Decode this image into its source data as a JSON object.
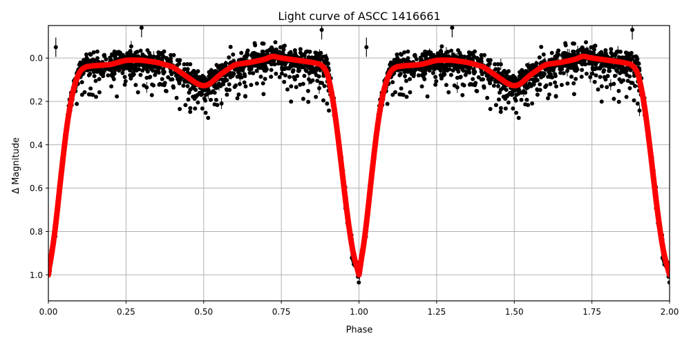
{
  "figure": {
    "title": "Light curve of ASCC 1416661",
    "xlabel": "Phase",
    "ylabel": "Δ Magnitude",
    "background": "#ffffff",
    "model_color": "#ff0000",
    "data_color": "#000000",
    "grid_color": "#b0b0b0"
  },
  "chart_data": {
    "type": "scatter",
    "title": "Light curve of ASCC 1416661",
    "xlabel": "Phase",
    "ylabel": "Δ Magnitude",
    "xlim": [
      0.0,
      2.0
    ],
    "ylim": [
      1.12,
      -0.15
    ],
    "y_inverted": true,
    "grid": true,
    "legend": null,
    "xticks": [
      0.0,
      0.25,
      0.5,
      0.75,
      1.0,
      1.25,
      1.5,
      1.75,
      2.0
    ],
    "xtick_labels": [
      "0.00",
      "0.25",
      "0.50",
      "0.75",
      "1.00",
      "1.25",
      "1.50",
      "1.75",
      "2.00"
    ],
    "yticks": [
      0.0,
      0.2,
      0.4,
      0.6,
      0.8,
      1.0
    ],
    "ytick_labels": [
      "0.0",
      "0.2",
      "0.4",
      "0.6",
      "0.8",
      "1.0"
    ],
    "series": [
      {
        "name": "observations",
        "kind": "scatter_with_errorbars",
        "color": "#000000",
        "description": "Dense black points with error bars scattered around model, phase-folded and repeated twice"
      },
      {
        "name": "model",
        "kind": "line",
        "color": "#ff0000",
        "x": [
          0.0,
          0.02,
          0.04,
          0.06,
          0.08,
          0.1,
          0.12,
          0.15,
          0.2,
          0.25,
          0.3,
          0.35,
          0.4,
          0.45,
          0.48,
          0.5,
          0.52,
          0.55,
          0.6,
          0.65,
          0.7,
          0.72,
          0.75,
          0.8,
          0.85,
          0.88,
          0.9,
          0.92,
          0.94,
          0.96,
          0.98,
          1.0,
          1.02,
          1.04,
          1.06,
          1.08,
          1.1,
          1.12,
          1.15,
          1.2,
          1.25,
          1.3,
          1.35,
          1.4,
          1.45,
          1.48,
          1.5,
          1.52,
          1.55,
          1.6,
          1.65,
          1.7,
          1.72,
          1.75,
          1.8,
          1.85,
          1.88,
          1.9,
          1.92,
          1.94,
          1.96,
          1.98,
          2.0
        ],
        "y": [
          1.0,
          0.82,
          0.55,
          0.3,
          0.14,
          0.06,
          0.04,
          0.035,
          0.03,
          0.01,
          0.01,
          0.02,
          0.04,
          0.09,
          0.12,
          0.13,
          0.12,
          0.08,
          0.03,
          0.02,
          0.005,
          -0.01,
          0.0,
          0.01,
          0.02,
          0.03,
          0.07,
          0.22,
          0.45,
          0.7,
          0.9,
          1.0,
          0.82,
          0.55,
          0.3,
          0.14,
          0.06,
          0.04,
          0.035,
          0.03,
          0.01,
          0.01,
          0.02,
          0.04,
          0.09,
          0.12,
          0.13,
          0.12,
          0.08,
          0.03,
          0.02,
          0.005,
          -0.01,
          0.0,
          0.01,
          0.02,
          0.03,
          0.07,
          0.22,
          0.45,
          0.7,
          0.9,
          1.0
        ]
      }
    ],
    "annotations": {
      "primary_eclipse_depth": 1.0,
      "primary_eclipse_phase": [
        0.0,
        1.0,
        2.0
      ],
      "secondary_eclipse_depth": 0.13,
      "secondary_eclipse_phase": [
        0.5,
        1.5
      ],
      "out_of_eclipse_level": 0.02
    }
  }
}
